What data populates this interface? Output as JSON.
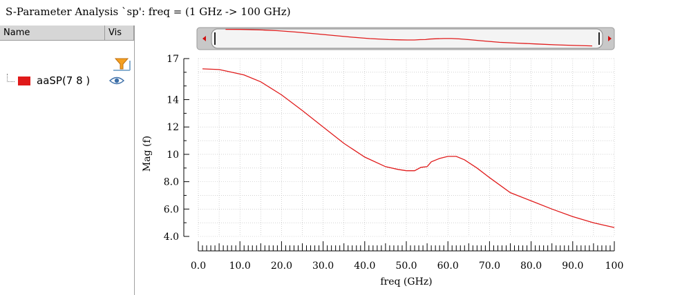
{
  "window": {
    "title": "S-Parameter Analysis `sp': freq = (1 GHz -> 100 GHz)"
  },
  "legend": {
    "columns": [
      "Name",
      "Vis"
    ],
    "filter_icon": "filter-funnel-icon",
    "visibility_icon": "eye-icon",
    "items": [
      {
        "label": "aaSP(7 8 )",
        "color": "#e01a1a"
      }
    ]
  },
  "chart_data": {
    "type": "line",
    "title": "",
    "xlabel": "freq (GHz)",
    "ylabel": "Mag (f)",
    "xlim": [
      0,
      100
    ],
    "ylim": [
      4,
      17
    ],
    "xticks": [
      "0.0",
      "10.0",
      "20.0",
      "30.0",
      "40.0",
      "50.0",
      "60.0",
      "70.0",
      "80.0",
      "90.0",
      "100"
    ],
    "yticks": [
      "4.0",
      "6.0",
      "8.0",
      "10",
      "12",
      "14",
      "17"
    ],
    "ytick_values": [
      4,
      6,
      8,
      10,
      12,
      14,
      17
    ],
    "grid": true,
    "series": [
      {
        "name": "aaSP(7 8 )",
        "color": "#e01a1a",
        "x": [
          1,
          5,
          8,
          11,
          15,
          20,
          25,
          30,
          35,
          40,
          45,
          48,
          50,
          52,
          53.5,
          55,
          56,
          58,
          60,
          62,
          64,
          67,
          70,
          75,
          80,
          85,
          90,
          95,
          100
        ],
        "y": [
          16.25,
          16.2,
          16.0,
          15.8,
          15.3,
          14.35,
          13.2,
          12.0,
          10.8,
          9.8,
          9.1,
          8.9,
          8.8,
          8.8,
          9.05,
          9.1,
          9.45,
          9.7,
          9.85,
          9.85,
          9.6,
          9.0,
          8.3,
          7.2,
          6.6,
          6.0,
          5.45,
          5.0,
          4.65
        ]
      }
    ],
    "overview": {
      "type": "line",
      "color": "#e01a1a"
    }
  }
}
